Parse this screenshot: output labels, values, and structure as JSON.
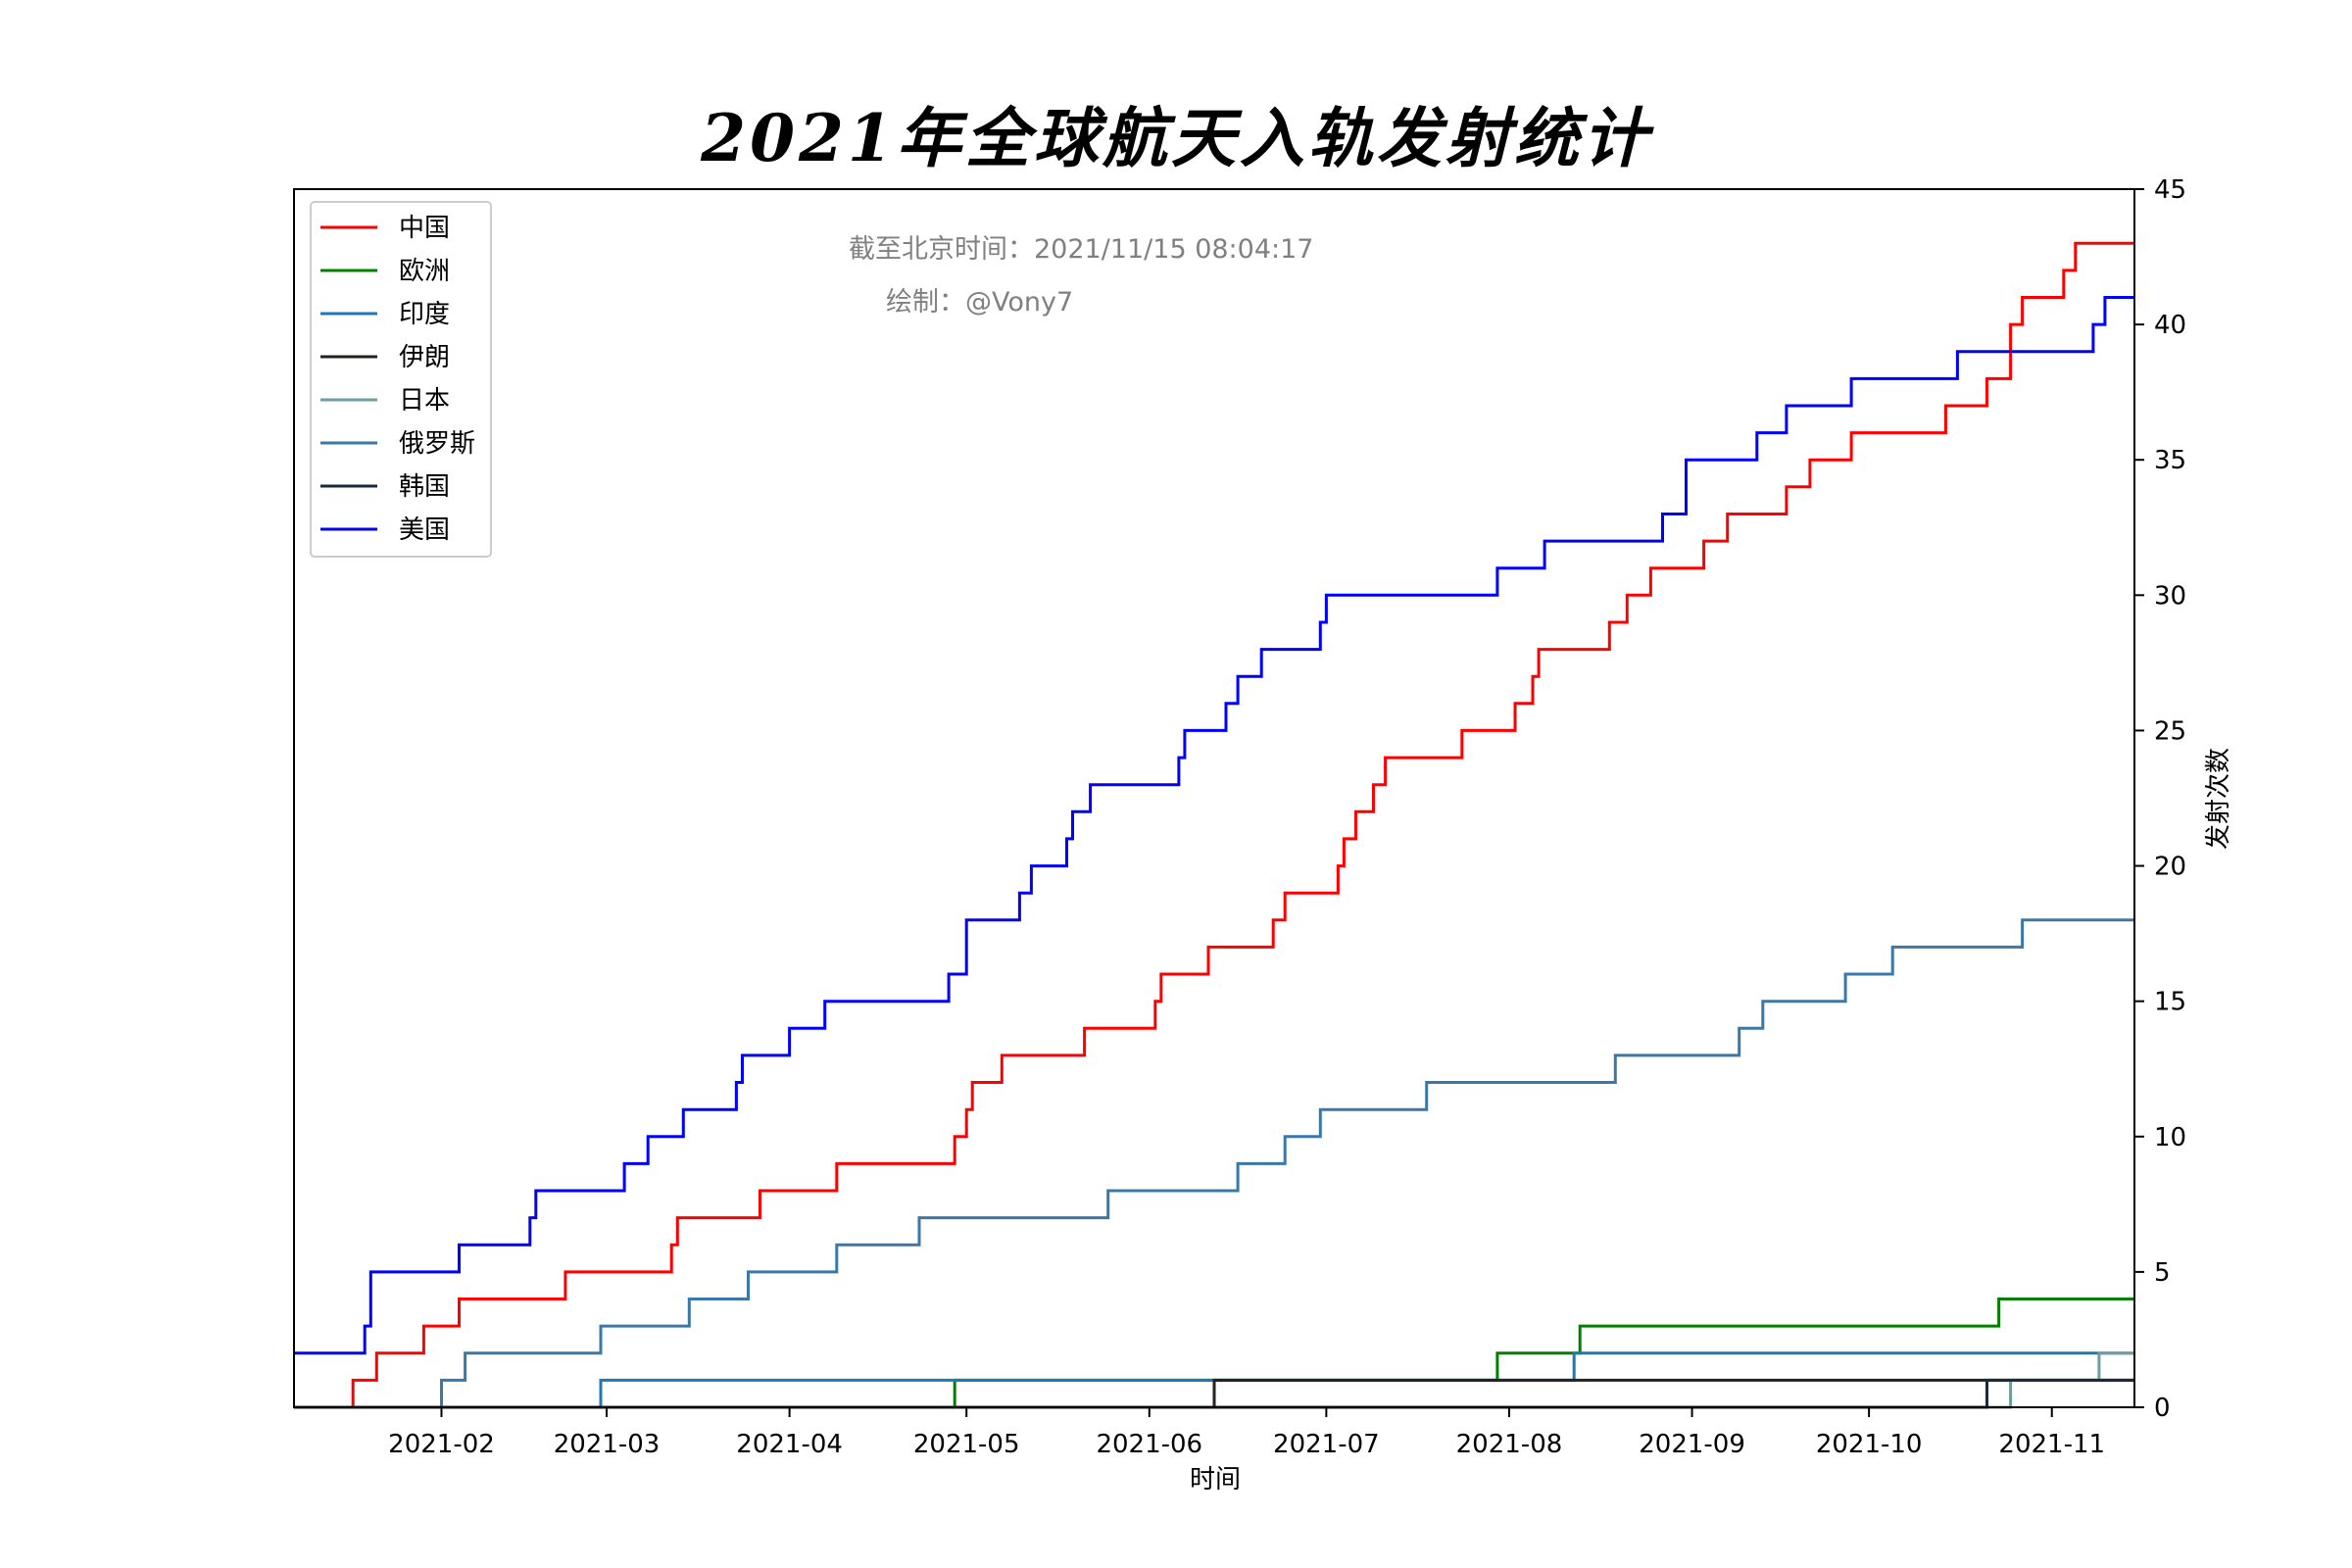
{
  "chart_data": {
    "type": "line",
    "step": "post",
    "title": "2021年全球航天入轨发射统计",
    "xlabel": "时间",
    "ylabel": "发射次数",
    "y_axis_side": "right",
    "xlim": [
      "2021-01-07",
      "2021-11-15"
    ],
    "ylim": [
      0,
      45
    ],
    "x_ticks": [
      "2021-02-01",
      "2021-03-01",
      "2021-04-01",
      "2021-05-01",
      "2021-06-01",
      "2021-07-01",
      "2021-08-01",
      "2021-09-01",
      "2021-10-01",
      "2021-11-01"
    ],
    "x_tick_labels": [
      "2021-02",
      "2021-03",
      "2021-04",
      "2021-05",
      "2021-06",
      "2021-07",
      "2021-08",
      "2021-09",
      "2021-10",
      "2021-11"
    ],
    "y_ticks": [
      0,
      5,
      10,
      15,
      20,
      25,
      30,
      35,
      40,
      45
    ],
    "y_tick_labels": [
      "0",
      "5",
      "10",
      "15",
      "20",
      "25",
      "30",
      "35",
      "40",
      "45"
    ],
    "legend_position": "top-left",
    "annotations": [
      {
        "text": "截至北京时间：2021/11/15 08:04:17"
      },
      {
        "text": "绘制：@Vony7"
      }
    ],
    "series": [
      {
        "name": "中国",
        "color": "#ff0000",
        "points": [
          [
            "2021-01-07",
            0
          ],
          [
            "2021-01-17",
            1
          ],
          [
            "2021-01-21",
            2
          ],
          [
            "2021-01-29",
            3
          ],
          [
            "2021-02-04",
            4
          ],
          [
            "2021-02-22",
            5
          ],
          [
            "2021-03-12",
            6
          ],
          [
            "2021-03-13",
            7
          ],
          [
            "2021-03-27",
            8
          ],
          [
            "2021-04-09",
            9
          ],
          [
            "2021-04-29",
            10
          ],
          [
            "2021-05-01",
            11
          ],
          [
            "2021-05-02",
            12
          ],
          [
            "2021-05-07",
            13
          ],
          [
            "2021-05-21",
            14
          ],
          [
            "2021-06-02",
            15
          ],
          [
            "2021-06-03",
            16
          ],
          [
            "2021-06-11",
            17
          ],
          [
            "2021-06-22",
            18
          ],
          [
            "2021-06-24",
            19
          ],
          [
            "2021-07-03",
            20
          ],
          [
            "2021-07-04",
            21
          ],
          [
            "2021-07-06",
            22
          ],
          [
            "2021-07-09",
            23
          ],
          [
            "2021-07-11",
            24
          ],
          [
            "2021-07-24",
            25
          ],
          [
            "2021-08-02",
            26
          ],
          [
            "2021-08-05",
            27
          ],
          [
            "2021-08-06",
            28
          ],
          [
            "2021-08-18",
            29
          ],
          [
            "2021-08-21",
            30
          ],
          [
            "2021-08-25",
            31
          ],
          [
            "2021-09-03",
            32
          ],
          [
            "2021-09-07",
            33
          ],
          [
            "2021-09-17",
            34
          ],
          [
            "2021-09-21",
            35
          ],
          [
            "2021-09-28",
            36
          ],
          [
            "2021-10-14",
            37
          ],
          [
            "2021-10-21",
            38
          ],
          [
            "2021-10-25",
            40
          ],
          [
            "2021-10-27",
            41
          ],
          [
            "2021-11-03",
            42
          ],
          [
            "2021-11-05",
            43
          ],
          [
            "2021-11-15",
            43
          ]
        ]
      },
      {
        "name": "欧洲",
        "color": "#008000",
        "points": [
          [
            "2021-01-07",
            0
          ],
          [
            "2021-04-29",
            1
          ],
          [
            "2021-07-30",
            2
          ],
          [
            "2021-08-13",
            3
          ],
          [
            "2021-10-23",
            4
          ],
          [
            "2021-11-15",
            4
          ]
        ]
      },
      {
        "name": "印度",
        "color": "#1f77b4",
        "points": [
          [
            "2021-01-07",
            0
          ],
          [
            "2021-02-28",
            1
          ],
          [
            "2021-08-12",
            2
          ],
          [
            "2021-11-15",
            2
          ]
        ]
      },
      {
        "name": "伊朗",
        "color": "#2a1f1f",
        "points": [
          [
            "2021-01-07",
            0
          ],
          [
            "2021-06-12",
            1
          ],
          [
            "2021-11-15",
            1
          ]
        ]
      },
      {
        "name": "日本",
        "color": "#6f9c9c",
        "points": [
          [
            "2021-01-07",
            0
          ],
          [
            "2021-10-25",
            1
          ],
          [
            "2021-11-09",
            2
          ],
          [
            "2021-11-15",
            2
          ]
        ]
      },
      {
        "name": "俄罗斯",
        "color": "#3a78a8",
        "points": [
          [
            "2021-01-07",
            0
          ],
          [
            "2021-02-01",
            1
          ],
          [
            "2021-02-05",
            2
          ],
          [
            "2021-02-28",
            3
          ],
          [
            "2021-03-15",
            4
          ],
          [
            "2021-03-25",
            5
          ],
          [
            "2021-04-09",
            6
          ],
          [
            "2021-04-23",
            7
          ],
          [
            "2021-05-25",
            8
          ],
          [
            "2021-06-16",
            9
          ],
          [
            "2021-06-24",
            10
          ],
          [
            "2021-06-30",
            11
          ],
          [
            "2021-07-18",
            12
          ],
          [
            "2021-08-19",
            13
          ],
          [
            "2021-09-09",
            14
          ],
          [
            "2021-09-13",
            15
          ],
          [
            "2021-09-27",
            16
          ],
          [
            "2021-10-05",
            17
          ],
          [
            "2021-10-27",
            18
          ],
          [
            "2021-11-15",
            18
          ]
        ]
      },
      {
        "name": "韩国",
        "color": "#1a2a3a",
        "points": [
          [
            "2021-01-07",
            0
          ],
          [
            "2021-10-21",
            1
          ],
          [
            "2021-11-15",
            1
          ]
        ]
      },
      {
        "name": "美国",
        "color": "#0000ff",
        "points": [
          [
            "2021-01-07",
            2
          ],
          [
            "2021-01-19",
            3
          ],
          [
            "2021-01-20",
            4
          ],
          [
            "2021-01-20",
            5
          ],
          [
            "2021-02-04",
            6
          ],
          [
            "2021-02-16",
            7
          ],
          [
            "2021-02-17",
            8
          ],
          [
            "2021-03-04",
            9
          ],
          [
            "2021-03-08",
            10
          ],
          [
            "2021-03-14",
            11
          ],
          [
            "2021-03-23",
            12
          ],
          [
            "2021-03-24",
            13
          ],
          [
            "2021-04-01",
            14
          ],
          [
            "2021-04-07",
            15
          ],
          [
            "2021-04-28",
            16
          ],
          [
            "2021-05-01",
            17
          ],
          [
            "2021-05-01",
            18
          ],
          [
            "2021-05-10",
            19
          ],
          [
            "2021-05-12",
            20
          ],
          [
            "2021-05-18",
            21
          ],
          [
            "2021-05-19",
            22
          ],
          [
            "2021-05-22",
            23
          ],
          [
            "2021-06-06",
            24
          ],
          [
            "2021-06-07",
            25
          ],
          [
            "2021-06-14",
            26
          ],
          [
            "2021-06-16",
            27
          ],
          [
            "2021-06-20",
            28
          ],
          [
            "2021-06-30",
            29
          ],
          [
            "2021-07-01",
            30
          ],
          [
            "2021-07-30",
            31
          ],
          [
            "2021-08-07",
            32
          ],
          [
            "2021-08-27",
            33
          ],
          [
            "2021-08-31",
            34
          ],
          [
            "2021-08-31",
            35
          ],
          [
            "2021-09-12",
            36
          ],
          [
            "2021-09-17",
            37
          ],
          [
            "2021-09-28",
            38
          ],
          [
            "2021-10-16",
            39
          ],
          [
            "2021-11-08",
            40
          ],
          [
            "2021-11-10",
            41
          ],
          [
            "2021-11-15",
            41
          ]
        ]
      }
    ]
  }
}
